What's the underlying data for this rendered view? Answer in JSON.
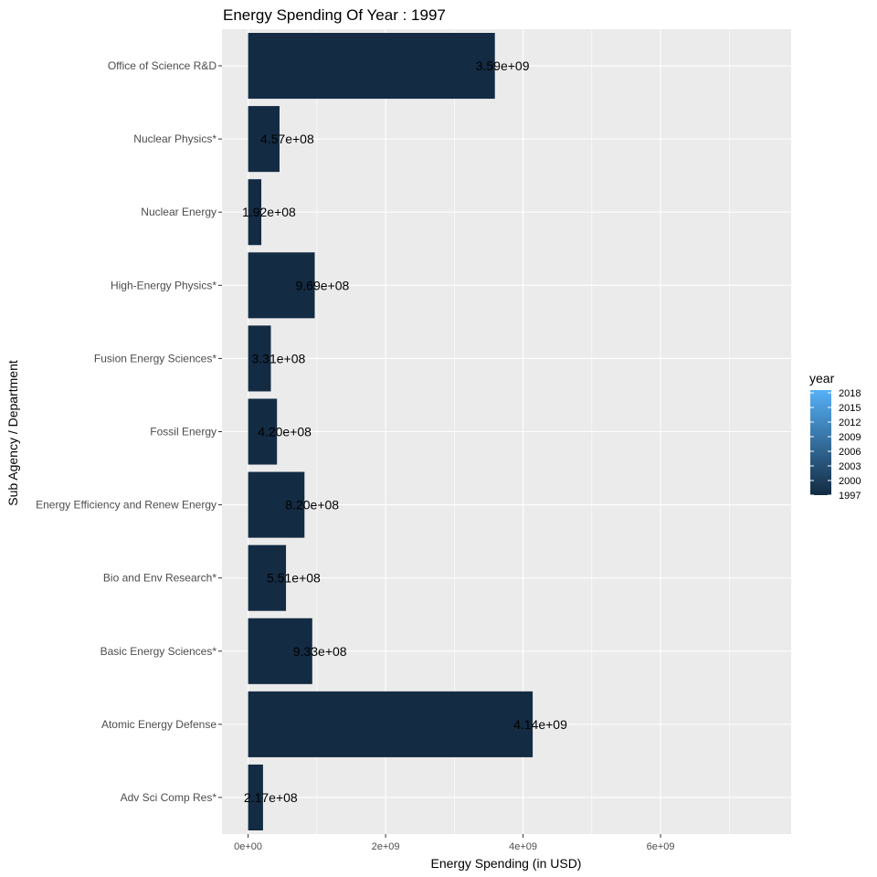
{
  "chart_data": {
    "type": "bar",
    "orientation": "horizontal",
    "title": "Energy Spending Of Year : 1997",
    "xlabel": "Energy Spending (in USD)",
    "ylabel": "Sub Agency / Department",
    "categories": [
      "Office of Science R&D",
      "Nuclear Physics*",
      "Nuclear Energy",
      "High-Energy Physics*",
      "Fusion Energy Sciences*",
      "Fossil Energy",
      "Energy Efficiency and Renew Energy",
      "Bio and Env Research*",
      "Basic Energy Sciences*",
      "Atomic Energy Defense",
      "Adv Sci Comp Res*"
    ],
    "values": [
      3590000000,
      457000000,
      192000000,
      969000000,
      331000000,
      420000000,
      820000000,
      551000000,
      933000000,
      4140000000,
      217000000
    ],
    "value_labels": [
      "3.59e+09",
      "4.57e+08",
      "1.92e+08",
      "9.69e+08",
      "3.31e+08",
      "4.20e+08",
      "8.20e+08",
      "5.51e+08",
      "9.33e+08",
      "4.14e+09",
      "2.17e+08"
    ],
    "xlim": [
      -380000000,
      7900000000
    ],
    "xticks": [
      0,
      2000000000,
      4000000000,
      6000000000
    ],
    "xtick_labels": [
      "0e+00",
      "2e+09",
      "4e+09",
      "6e+09"
    ],
    "grid": true,
    "bar_color": "#132B43",
    "panel_background": "#EBEBEB",
    "legend": {
      "title": "year",
      "position": "right",
      "labels": [
        "2018",
        "2015",
        "2012",
        "2009",
        "2006",
        "2003",
        "2000",
        "1997"
      ],
      "color_low": "#132B43",
      "color_high": "#56B1F7"
    }
  }
}
